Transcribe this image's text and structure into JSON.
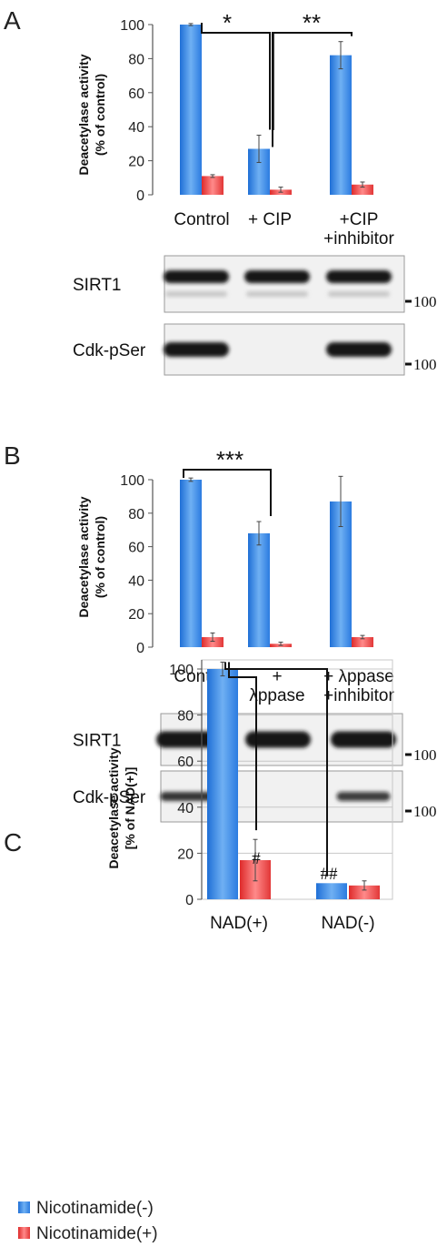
{
  "legend": [
    {
      "name": "Nicotinamide(-)",
      "color": "#3d8be8"
    },
    {
      "name": "Nicotinamide(+)",
      "color": "#ee4b4b"
    }
  ],
  "blot_marker_label": "100",
  "chart_data": [
    {
      "panel": "A",
      "type": "bar",
      "ylabel": [
        "Deacetylase activity",
        "(% of control)"
      ],
      "ylim": [
        0,
        100
      ],
      "yticks": [
        0,
        20,
        40,
        60,
        80,
        100
      ],
      "grid": false,
      "categories": [
        [
          "Control"
        ],
        [
          "+ CIP"
        ],
        [
          "+CIP",
          "+inhibitor"
        ]
      ],
      "series": [
        {
          "values": [
            100,
            27,
            82
          ],
          "errors": [
            0.6,
            8,
            8
          ],
          "color": "#3d8be8"
        },
        {
          "values": [
            11,
            3,
            6
          ],
          "errors": [
            0.8,
            1.5,
            1.5
          ],
          "color": "#ee4b4b"
        }
      ],
      "annotations": [
        {
          "label": "*",
          "from": 0,
          "to": 1
        },
        {
          "label": "**",
          "from": 1,
          "to": 2
        }
      ],
      "blots": [
        {
          "label": "SIRT1",
          "bands": [
            1,
            1,
            1
          ]
        },
        {
          "label": "Cdk-pSer",
          "bands": [
            1,
            0,
            1
          ]
        }
      ]
    },
    {
      "panel": "B",
      "type": "bar",
      "ylabel": [
        "Deacetylase activity",
        "(% of control)"
      ],
      "ylim": [
        0,
        100
      ],
      "yticks": [
        0,
        20,
        40,
        60,
        80,
        100
      ],
      "grid": false,
      "categories": [
        [
          "Control"
        ],
        [
          "+",
          "λppase"
        ],
        [
          "+ λppase",
          "+inhibitor"
        ]
      ],
      "series": [
        {
          "values": [
            100,
            68,
            87
          ],
          "errors": [
            1,
            7,
            15
          ],
          "color": "#3d8be8"
        },
        {
          "values": [
            6,
            2,
            6
          ],
          "errors": [
            2.5,
            1,
            1
          ],
          "color": "#ee4b4b"
        }
      ],
      "annotations": [
        {
          "label": "***",
          "from": 0,
          "to": 1
        }
      ],
      "blots": [
        {
          "label": "SIRT1",
          "bands": [
            1,
            1,
            1
          ]
        },
        {
          "label": "Cdk-pSer",
          "bands": [
            0.7,
            0,
            0.55
          ]
        }
      ]
    },
    {
      "panel": "C",
      "type": "bar",
      "ylabel": [
        "Deacetylase activity",
        "[% of NAD(+)]"
      ],
      "ylim": [
        0,
        100
      ],
      "yticks": [
        0,
        20,
        40,
        60,
        80,
        100
      ],
      "grid": true,
      "categories": [
        [
          "NAD(+)"
        ],
        [
          "NAD(-)"
        ]
      ],
      "series": [
        {
          "name": "Nicotinamide(-)",
          "values": [
            100,
            7
          ],
          "errors": [
            3,
            0
          ],
          "color": "#3d8be8"
        },
        {
          "name": "Nicotinamide(+)",
          "values": [
            17,
            6
          ],
          "errors": [
            9,
            2
          ],
          "color": "#ee4b4b"
        }
      ],
      "annotations": [
        {
          "label": "#",
          "target": "NAD(+) Nicotinamide(+)"
        },
        {
          "label": "##",
          "target": "NAD(-) Nicotinamide(-)"
        }
      ]
    }
  ]
}
